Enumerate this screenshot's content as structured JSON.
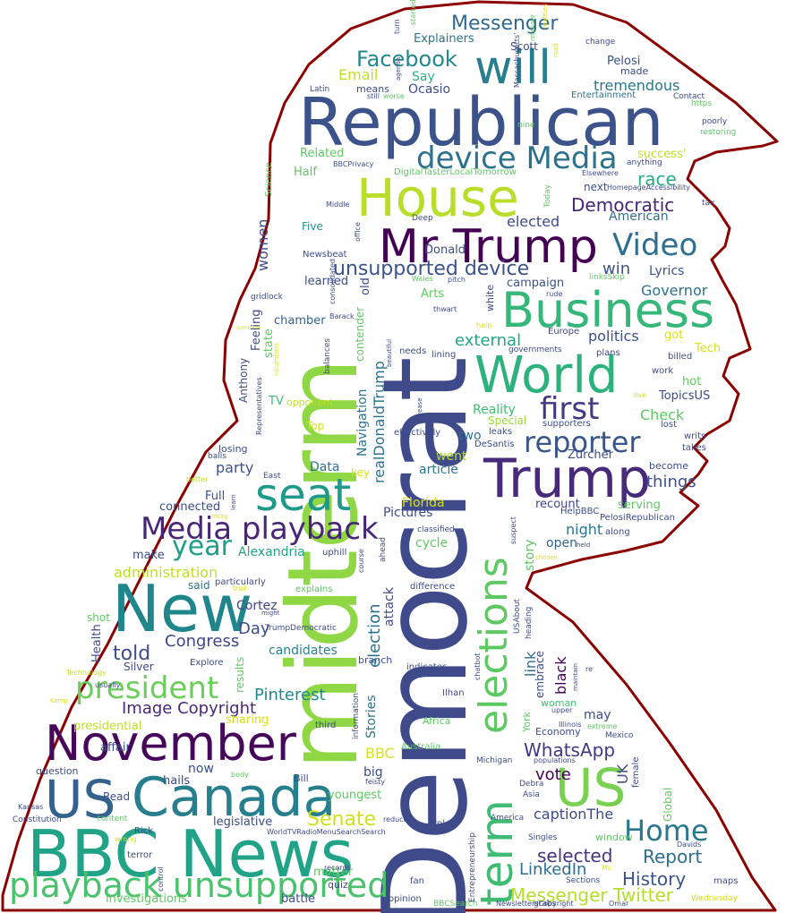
{
  "colors": {
    "outline": "#8b0000",
    "purple": "#440154",
    "indigo": "#3b528b",
    "teal": "#21918c",
    "green": "#2cb17e",
    "lime": "#9ddb32",
    "yellow": "#d8e219"
  },
  "words": {
    "democrat": "Democrat",
    "midterm": "midterm",
    "republican": "Republican",
    "bbc_news": "BBC News",
    "new": "New",
    "november": "November",
    "canada": "Canada",
    "trump": "Trump",
    "mr_trump": "Mr Trump",
    "house": "House",
    "business": "Business",
    "world": "World",
    "seat": "seat",
    "will": "will",
    "us_left": "US",
    "us_right": "US",
    "playback_unsupported": "playback unsupported",
    "media_playback": "Media playback",
    "elections": "elections",
    "term": "term",
    "device_media": "device Media",
    "president": "president",
    "video": "Video",
    "reporter": "reporter",
    "first": "first",
    "home": "Home",
    "facebook": "Facebook",
    "year": "year",
    "unsupported_device": "unsupported device",
    "messenger_top": "Messenger",
    "democratic": "Democratic",
    "congress": "Congress",
    "image_copyright": "Image Copyright",
    "senate": "Senate",
    "pinterest": "Pinterest",
    "whatsapp": "WhatsApp",
    "linkedin": "LinkedIn",
    "messenger_twitter": "Messenger Twitter",
    "history": "History",
    "report": "Report",
    "selected": "selected",
    "caption_the": "captionThe",
    "vote": "vote",
    "told": "told",
    "day": "Day",
    "administration": "administration",
    "alexandria": "Alexandria",
    "cortez": "Cortez",
    "candidates": "candidates",
    "tremendous": "tremendous",
    "race": "race",
    "elected": "elected",
    "american": "American",
    "win": "win",
    "governor": "Governor",
    "politics": "politics",
    "external": "external",
    "check": "Check",
    "things": "things",
    "party": "party",
    "data": "Data",
    "pictures": "Pictures",
    "florida": "Florida",
    "article": "article",
    "went": "went",
    "two": "two",
    "reality": "Reality",
    "special": "Special",
    "night": "night",
    "open": "open",
    "recount": "recount",
    "serving": "serving",
    "lyrics": "Lyrics",
    "campaign": "campaign",
    "email": "Email",
    "say": "Say",
    "ocasio": "Ocasio",
    "explainers": "Explainers",
    "scott": "Scott",
    "pelosi": "Pelosi",
    "made": "made",
    "related": "Related",
    "half": "Half",
    "success": "success'",
    "next": "next",
    "five": "Five",
    "donald": "Donald",
    "arts": "Arts",
    "learned": "learned",
    "chamber": "chamber",
    "feeling": "Feeling",
    "state": "state",
    "tv": "TV",
    "opponent": "opponent",
    "top": "Top",
    "full": "Full",
    "connected": "connected",
    "make": "make",
    "said": "said",
    "shot": "shot",
    "health": "Health",
    "silver": "Silver",
    "presidential": "presidential",
    "sharing": "sharing",
    "results": "results",
    "explore": "Explore",
    "affair": "affair",
    "now": "now",
    "hails": "hails",
    "question": "question",
    "bill": "Bill",
    "read": "Read",
    "legislative": "legislative",
    "youngest": "youngest",
    "big": "big",
    "bbc_small": "BBC",
    "uk": "UK",
    "may": "may",
    "economy": "Economy",
    "woman": "woman",
    "embrace": "embrace",
    "link": "link",
    "black": "black",
    "story": "story",
    "zurcher": "Zurcher",
    "leaks": "leaks",
    "desantis": "DeSantis",
    "key": "key",
    "cycle": "cycle",
    "battle": "battle",
    "matter": "matter",
    "quiz": "quiz",
    "investigations": "investigations",
    "tech": "Tech",
    "hot": "hot",
    "topics_us": "TopicsUS",
    "lost": "lost",
    "writs": "writs",
    "takes": "takes",
    "become": "become",
    "global": "Global",
    "window": "window",
    "real_donald_trump": "realDonaldTrump",
    "navigation": "Navigation",
    "stories": "Stories",
    "election": "election",
    "attack": "attack",
    "contender": "contender",
    "old": "old",
    "women": "women",
    "anthony": "Anthony",
    "newsbeat": "Newsbeat",
    "latin": "Latin",
    "means": "means",
    "entertainment": "Entertainment",
    "contact": "Contact",
    "https": "https",
    "change": "change",
    "poorly": "poorly",
    "restoring": "restoring",
    "anything": "anything",
    "elsewhere": "Elsewhere",
    "homepage_accessibility": "HomepageAccessibility",
    "tax": "tax",
    "bbc_privacy": "BBCPrivacy",
    "digital_taster": "DigitalTasterLocalTomorrow",
    "deep": "Deep",
    "middle": "Middle",
    "still": "still",
    "worse": "worse",
    "nine": "nine",
    "today": "Today",
    "europe": "Europe",
    "plans": "plans",
    "billed": "billed",
    "work": "work",
    "supporters": "supporters",
    "effectively": "effectively",
    "pelosi_republican": "PelosiRepublican",
    "help_bbc": "HelpBBC",
    "along": "along",
    "classified": "classified",
    "uphill": "uphill",
    "difference": "difference",
    "explains": "explains",
    "particularly": "particularly",
    "trump_democratic": "TrumpDemocratic",
    "branch": "branch",
    "indicates": "indicates",
    "africa": "Africa",
    "australia": "Australia",
    "third": "third",
    "ilhan": "Ilhan",
    "michigan": "Michigan",
    "debra": "Debra",
    "asia": "Asia",
    "america": "America",
    "singles": "Singles",
    "broke": "broke",
    "fan": "fan",
    "opinion": "opinion",
    "grabs": "grabs",
    "sections": "Sections",
    "maps": "maps",
    "wednesday": "Wednesday",
    "bbc_search": "BBCSearch",
    "newsletters_copyright": "NewslettersCopyright",
    "omar": "Omar",
    "davids": "Davids",
    "illinois": "Illinois",
    "mexico": "Mexico",
    "extreme": "extreme",
    "upper": "upper",
    "populations": "populations",
    "female": "female",
    "world_tv_radio": "WorldTVRadioMenuSearchSearch",
    "rick": "Rick",
    "terror": "terror",
    "records": "records",
    "constitution": "Constitution",
    "content": "content",
    "kansas": "Kansas",
    "reduce": "reduce",
    "east": "East",
    "better": "better",
    "balls": "balls",
    "losing": "losing",
    "technology": "Technology",
    "usually": "usually",
    "kemp": "Kemp",
    "body": "body",
    "feisty": "feisty",
    "wrong": "wrong",
    "usa_about": "USAbout",
    "heading": "heading",
    "chatbot": "chatbot",
    "information": "information",
    "york": "York",
    "lining": "lining",
    "needs": "needs",
    "barack": "Barack",
    "gridlock": "gridlock",
    "consolidated": "consolidated",
    "wales": "Wales",
    "pitch": "pitch",
    "thwart": "thwart",
    "rude": "rude",
    "links_skip": "linksSkip",
    "white": "white",
    "office": "office",
    "science": "Science",
    "massachusetts": "Massachusetts'",
    "agenda": "agenda",
    "turn": "turn",
    "started": "started",
    "retaliate": "retaliate",
    "road": "road",
    "realities": "realities",
    "incumbent": "incumbent",
    "balances": "balances",
    "representatives": "Representatives",
    "governments": "governments",
    "trail": "trail",
    "might": "might",
    "course": "course",
    "ahead": "ahead",
    "suspect": "suspect",
    "chosen": "chosen",
    "held": "held",
    "beautiful": "beautiful",
    "increase": "increase",
    "entrepreneurship": "Entrepreneurship",
    "ms": "Ms",
    "control": "control",
    "maintain": "maintain",
    "help": "help",
    "someone": "someone",
    "rocky": "rocky",
    "learn": "learn",
    "live": "live",
    "re": "re",
    "got": "got"
  }
}
